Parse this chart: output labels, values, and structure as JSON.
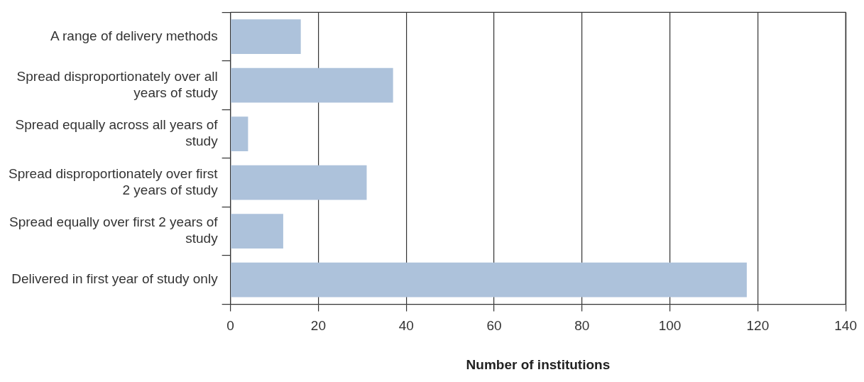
{
  "chart_data": {
    "type": "bar",
    "orientation": "horizontal",
    "xlabel": "Number of institutions",
    "categories": [
      "A range of delivery methods",
      "Spread disproportionately over all years of study",
      "Spread equally across all years of study",
      "Spread disproportionately over first 2 years of study",
      "Spread equally over first 2 years of study",
      "Delivered in first year of study only"
    ],
    "values": [
      16,
      37,
      4,
      31,
      12,
      117.5
    ],
    "color": "#adc2db",
    "xlim": [
      0,
      140
    ],
    "xticks": [
      0,
      20,
      40,
      60,
      80,
      100,
      120,
      140
    ],
    "grid": "x",
    "legend": false
  }
}
